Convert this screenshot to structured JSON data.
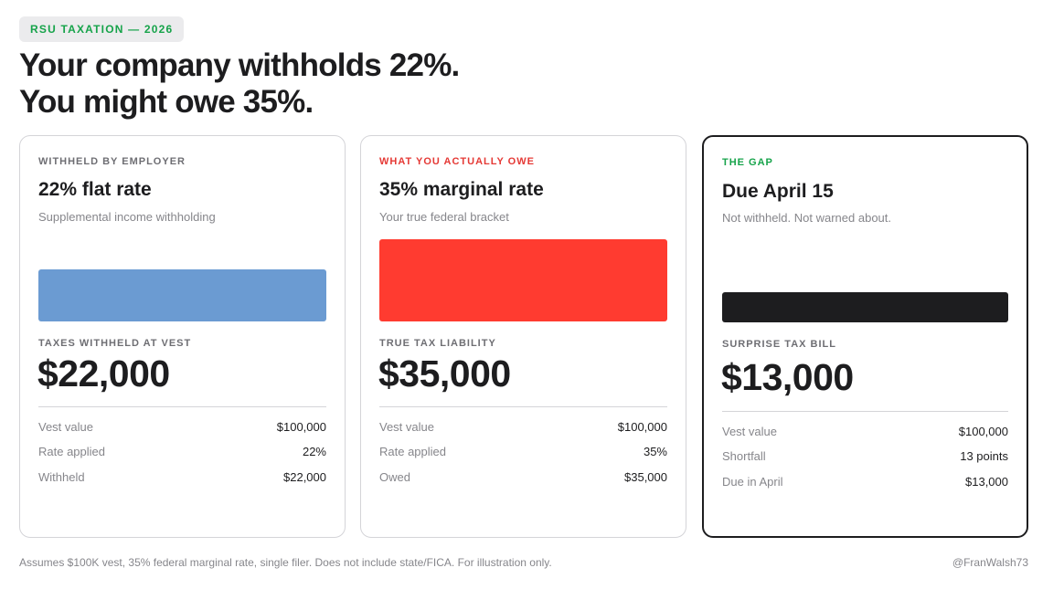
{
  "badge": "RSU TAXATION — 2026",
  "headline": {
    "line1": "Your company withholds 22%.",
    "line2": "You might owe 35%."
  },
  "colors": {
    "accent_green": "#16a34a",
    "accent_red": "#e53935",
    "bar_blue": "#6b9bd2",
    "bar_red": "#ff3b30",
    "bar_black": "#1d1d1f"
  },
  "cards": [
    {
      "eyebrow": "WITHHELD BY EMPLOYER",
      "title": "22% flat rate",
      "subtitle": "Supplemental income withholding",
      "metric_label": "TAXES WITHHELD AT VEST",
      "metric": "$22,000",
      "rows": [
        {
          "label": "Vest value",
          "value": "$100,000"
        },
        {
          "label": "Rate applied",
          "value": "22%"
        },
        {
          "label": "Withheld",
          "value": "$22,000"
        }
      ]
    },
    {
      "eyebrow": "WHAT YOU ACTUALLY OWE",
      "title": "35% marginal rate",
      "subtitle": "Your true federal bracket",
      "metric_label": "TRUE TAX LIABILITY",
      "metric": "$35,000",
      "rows": [
        {
          "label": "Vest value",
          "value": "$100,000"
        },
        {
          "label": "Rate applied",
          "value": "35%"
        },
        {
          "label": "Owed",
          "value": "$35,000"
        }
      ]
    },
    {
      "eyebrow": "THE GAP",
      "title": "Due April 15",
      "subtitle": "Not withheld. Not warned about.",
      "metric_label": "SURPRISE TAX BILL",
      "metric": "$13,000",
      "rows": [
        {
          "label": "Vest value",
          "value": "$100,000"
        },
        {
          "label": "Shortfall",
          "value": "13 points"
        },
        {
          "label": "Due in April",
          "value": "$13,000"
        }
      ]
    }
  ],
  "footnote": "Assumes $100K vest, 35% federal marginal rate, single filer. Does not include state/FICA. For illustration only.",
  "handle": "@FranWalsh73"
}
